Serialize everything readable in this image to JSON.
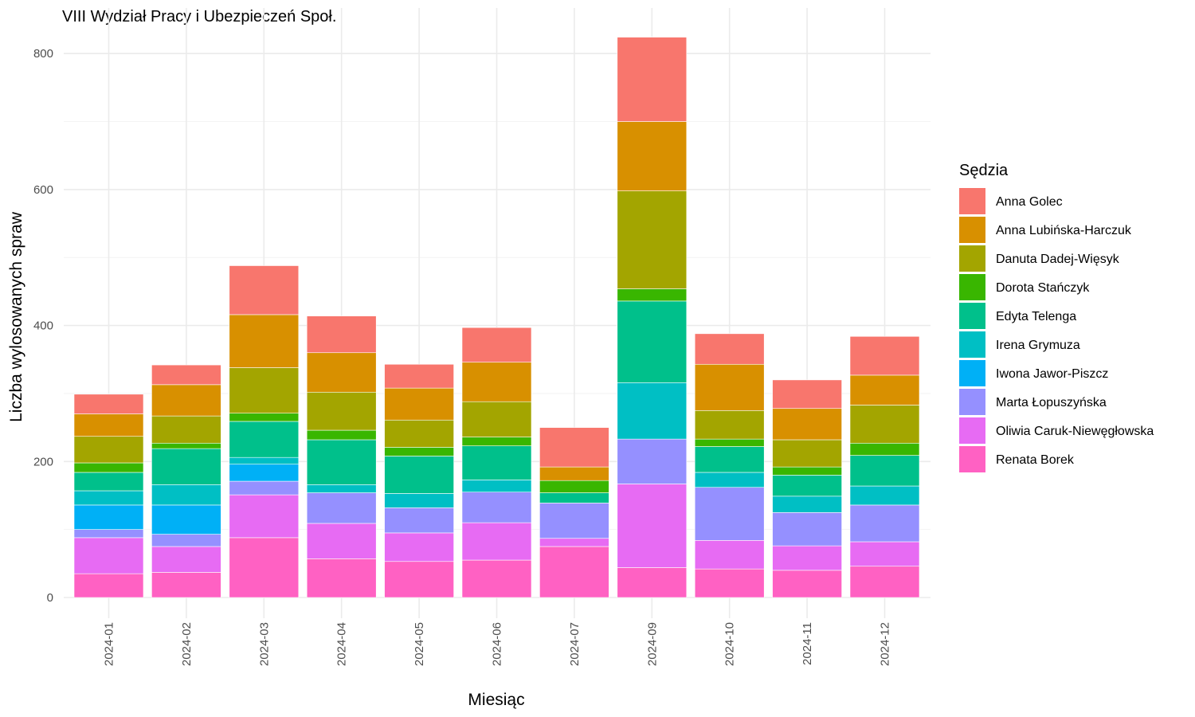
{
  "chart_data": {
    "type": "bar",
    "stacked": true,
    "title": "VIII Wydział Pracy i Ubezpieczeń Społ.",
    "xlabel": "Miesiąc",
    "ylabel": "Liczba wylosowanych spraw",
    "ylim": [
      0,
      860
    ],
    "yticks": [
      0,
      200,
      400,
      600,
      800
    ],
    "grid": true,
    "legend_position": "right",
    "legend_title": "Sędzia",
    "categories": [
      "2024-01",
      "2024-02",
      "2024-03",
      "2024-04",
      "2024-05",
      "2024-06",
      "2024-07",
      "2024-09",
      "2024-10",
      "2024-11",
      "2024-12"
    ],
    "series": [
      {
        "name": "Renata Borek",
        "color": "#FF61C3",
        "values": [
          35,
          37,
          88,
          57,
          53,
          55,
          75,
          44,
          42,
          40,
          46
        ]
      },
      {
        "name": "Oliwia Caruk-Niewęgłowska",
        "color": "#E76BF3",
        "values": [
          53,
          38,
          63,
          52,
          42,
          55,
          12,
          123,
          42,
          36,
          36
        ]
      },
      {
        "name": "Marta Łopuszyńska",
        "color": "#9590FF",
        "values": [
          12,
          18,
          20,
          45,
          37,
          45,
          52,
          66,
          78,
          49,
          54
        ]
      },
      {
        "name": "Iwona Jawor-Piszcz",
        "color": "#00B0F6",
        "values": [
          36,
          43,
          25,
          0,
          0,
          0,
          0,
          0,
          0,
          0,
          0
        ]
      },
      {
        "name": "Irena Grymuza",
        "color": "#00BFC4",
        "values": [
          21,
          30,
          10,
          12,
          21,
          18,
          0,
          83,
          22,
          24,
          28
        ]
      },
      {
        "name": "Edyta Telenga",
        "color": "#00C08B",
        "values": [
          27,
          53,
          53,
          66,
          55,
          50,
          15,
          120,
          38,
          31,
          45
        ]
      },
      {
        "name": "Dorota Stańczyk",
        "color": "#39B600",
        "values": [
          14,
          8,
          12,
          14,
          13,
          13,
          18,
          18,
          11,
          12,
          18
        ]
      },
      {
        "name": "Danuta Dadej-Więsyk",
        "color": "#A3A500",
        "values": [
          39,
          40,
          67,
          56,
          40,
          52,
          0,
          144,
          42,
          40,
          56
        ]
      },
      {
        "name": "Anna Lubińska-Harczuk",
        "color": "#D89000",
        "values": [
          33,
          46,
          78,
          58,
          47,
          58,
          20,
          102,
          68,
          46,
          44
        ]
      },
      {
        "name": "Anna Golec",
        "color": "#F8766D",
        "values": [
          29,
          29,
          72,
          54,
          35,
          51,
          58,
          124,
          45,
          42,
          57
        ]
      }
    ]
  }
}
